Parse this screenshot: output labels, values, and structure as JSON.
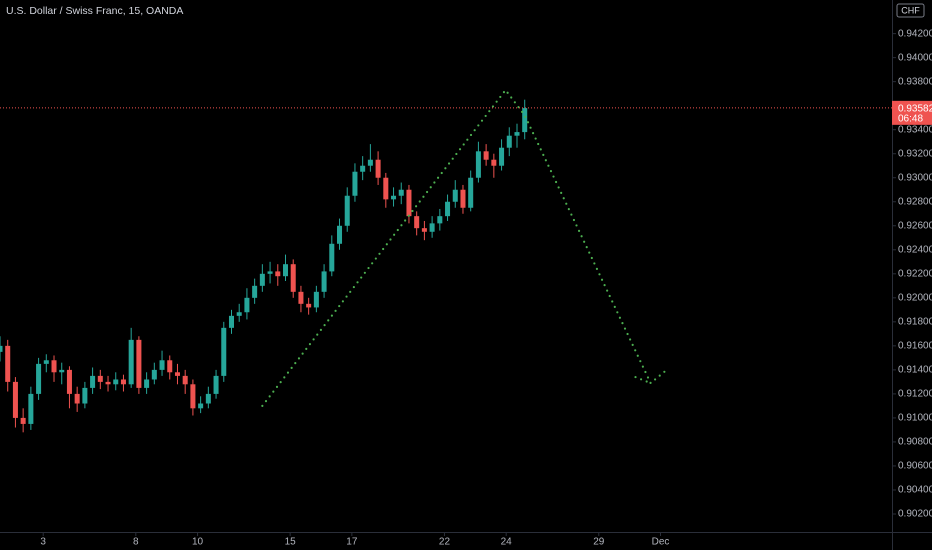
{
  "chart_data": {
    "type": "candlestick",
    "title": "U.S. Dollar / Swiss Franc, 15, OANDA",
    "currency": "CHF",
    "up_color": "#26a69a",
    "down_color": "#ef5350",
    "x": [
      -1.4,
      -1.15,
      -0.9,
      -0.65,
      -0.4,
      -0.15,
      0.1,
      0.35,
      0.6,
      0.85,
      1.1,
      1.35,
      1.6,
      1.85,
      2.1,
      2.35,
      2.6,
      2.85,
      3.1,
      3.35,
      3.6,
      3.85,
      4.1,
      4.35,
      4.6,
      4.85,
      5.1,
      5.35,
      5.6,
      5.85,
      6.1,
      6.35,
      6.6,
      6.85,
      7.1,
      7.35,
      7.6,
      7.85,
      8.1,
      8.35,
      8.6,
      8.85,
      9.1,
      9.35,
      9.6,
      9.85,
      10.1,
      10.35,
      10.6,
      10.85,
      11.1,
      11.35,
      11.6,
      11.85,
      12.1,
      12.35,
      12.6,
      12.85,
      13.1,
      13.35,
      13.6,
      13.85,
      14.1,
      14.35,
      14.6,
      14.85,
      15.1,
      15.35,
      15.6
    ],
    "open": [
      0.9155,
      0.916,
      0.913,
      0.91,
      0.9095,
      0.912,
      0.9145,
      0.9148,
      0.9138,
      0.914,
      0.912,
      0.9112,
      0.9125,
      0.9135,
      0.913,
      0.9128,
      0.9132,
      0.9128,
      0.9165,
      0.9125,
      0.9132,
      0.914,
      0.9148,
      0.9138,
      0.9135,
      0.9128,
      0.9108,
      0.9112,
      0.912,
      0.9135,
      0.9175,
      0.9185,
      0.9188,
      0.92,
      0.921,
      0.922,
      0.9222,
      0.9218,
      0.9228,
      0.9205,
      0.9195,
      0.9192,
      0.9205,
      0.9222,
      0.9245,
      0.926,
      0.9285,
      0.9305,
      0.931,
      0.9315,
      0.93,
      0.9282,
      0.9285,
      0.929,
      0.9268,
      0.9258,
      0.9255,
      0.9262,
      0.9268,
      0.928,
      0.929,
      0.9275,
      0.93,
      0.9322,
      0.9315,
      0.931,
      0.9325,
      0.9335,
      0.9338
    ],
    "high": [
      0.9168,
      0.9165,
      0.9134,
      0.9108,
      0.9126,
      0.915,
      0.9153,
      0.9152,
      0.9146,
      0.9143,
      0.9126,
      0.913,
      0.9142,
      0.914,
      0.9135,
      0.9138,
      0.9136,
      0.9175,
      0.9168,
      0.9138,
      0.9146,
      0.9156,
      0.9152,
      0.9145,
      0.914,
      0.9132,
      0.9118,
      0.9126,
      0.914,
      0.918,
      0.919,
      0.9195,
      0.9208,
      0.9216,
      0.9228,
      0.923,
      0.9228,
      0.9236,
      0.9232,
      0.921,
      0.92,
      0.921,
      0.9228,
      0.9252,
      0.9266,
      0.9292,
      0.9312,
      0.9318,
      0.9328,
      0.9322,
      0.9304,
      0.9292,
      0.9296,
      0.9294,
      0.9272,
      0.9264,
      0.9268,
      0.9274,
      0.9286,
      0.9298,
      0.9294,
      0.9306,
      0.933,
      0.9328,
      0.932,
      0.9332,
      0.9342,
      0.9345,
      0.9365
    ],
    "low": [
      0.9147,
      0.9122,
      0.9092,
      0.9088,
      0.909,
      0.9115,
      0.9138,
      0.913,
      0.9128,
      0.9108,
      0.9105,
      0.9108,
      0.912,
      0.9124,
      0.9122,
      0.9123,
      0.9122,
      0.9125,
      0.912,
      0.912,
      0.9128,
      0.9135,
      0.9132,
      0.9128,
      0.912,
      0.9102,
      0.9104,
      0.9108,
      0.9116,
      0.913,
      0.917,
      0.918,
      0.9182,
      0.9195,
      0.9205,
      0.9212,
      0.921,
      0.9214,
      0.92,
      0.9188,
      0.9186,
      0.9188,
      0.92,
      0.9218,
      0.924,
      0.9255,
      0.928,
      0.9298,
      0.9305,
      0.9294,
      0.9275,
      0.9276,
      0.9278,
      0.9262,
      0.9252,
      0.9248,
      0.925,
      0.9256,
      0.9264,
      0.9275,
      0.927,
      0.9272,
      0.9296,
      0.931,
      0.93,
      0.9306,
      0.9318,
      0.9325,
      0.9332
    ],
    "close": [
      0.916,
      0.913,
      0.91,
      0.9095,
      0.912,
      0.9145,
      0.9148,
      0.9138,
      0.914,
      0.912,
      0.9112,
      0.9125,
      0.9135,
      0.913,
      0.9128,
      0.9132,
      0.9128,
      0.9165,
      0.9125,
      0.9132,
      0.914,
      0.9148,
      0.9138,
      0.9135,
      0.9128,
      0.9108,
      0.9112,
      0.912,
      0.9135,
      0.9175,
      0.9185,
      0.9188,
      0.92,
      0.921,
      0.922,
      0.9222,
      0.9218,
      0.9228,
      0.9205,
      0.9195,
      0.9192,
      0.9205,
      0.9222,
      0.9245,
      0.926,
      0.9285,
      0.9305,
      0.931,
      0.9315,
      0.93,
      0.9282,
      0.9285,
      0.929,
      0.9268,
      0.9258,
      0.9255,
      0.9262,
      0.9268,
      0.928,
      0.929,
      0.9275,
      0.93,
      0.9322,
      0.9315,
      0.931,
      0.9325,
      0.9335,
      0.9338,
      0.9358
    ],
    "xlim": [
      -1.4,
      27.5
    ],
    "xticks": [
      {
        "value": 0,
        "label": "3"
      },
      {
        "value": 3,
        "label": "8"
      },
      {
        "value": 5,
        "label": "10"
      },
      {
        "value": 8,
        "label": "15"
      },
      {
        "value": 10,
        "label": "17"
      },
      {
        "value": 13,
        "label": "22"
      },
      {
        "value": 15,
        "label": "24"
      },
      {
        "value": 18,
        "label": "29"
      },
      {
        "value": 20,
        "label": "Dec"
      }
    ],
    "ylim": [
      0.9005,
      0.9448
    ],
    "yticks": [
      {
        "value": 0.942,
        "label": "0.94200"
      },
      {
        "value": 0.94,
        "label": "0.94000"
      },
      {
        "value": 0.938,
        "label": "0.93800"
      },
      {
        "value": 0.936,
        "label": "0.93600"
      },
      {
        "value": 0.934,
        "label": "0.93400"
      },
      {
        "value": 0.932,
        "label": "0.93200"
      },
      {
        "value": 0.93,
        "label": "0.93000"
      },
      {
        "value": 0.928,
        "label": "0.92800"
      },
      {
        "value": 0.926,
        "label": "0.92600"
      },
      {
        "value": 0.924,
        "label": "0.92400"
      },
      {
        "value": 0.922,
        "label": "0.92200"
      },
      {
        "value": 0.92,
        "label": "0.92000"
      },
      {
        "value": 0.918,
        "label": "0.91800"
      },
      {
        "value": 0.916,
        "label": "0.91600"
      },
      {
        "value": 0.914,
        "label": "0.91400"
      },
      {
        "value": 0.912,
        "label": "0.91200"
      },
      {
        "value": 0.91,
        "label": "0.91000"
      },
      {
        "value": 0.908,
        "label": "0.90800"
      },
      {
        "value": 0.906,
        "label": "0.90600"
      },
      {
        "value": 0.904,
        "label": "0.90400"
      },
      {
        "value": 0.902,
        "label": "0.90200"
      }
    ],
    "last_price": {
      "value": 0.93582,
      "label": "0.93582"
    },
    "countdown": "06:48",
    "price_line_color": "#ef5350",
    "drawings": [
      {
        "color": "#4caf50",
        "x": [
          7.1,
          14.98,
          15.6,
          19.68,
          20.2
        ],
        "y": [
          0.911,
          0.9373,
          0.9352,
          0.9129,
          0.914
        ]
      },
      {
        "color": "#4caf50",
        "x": [
          19.19,
          19.68
        ],
        "y": [
          0.9134,
          0.9129
        ]
      }
    ]
  }
}
